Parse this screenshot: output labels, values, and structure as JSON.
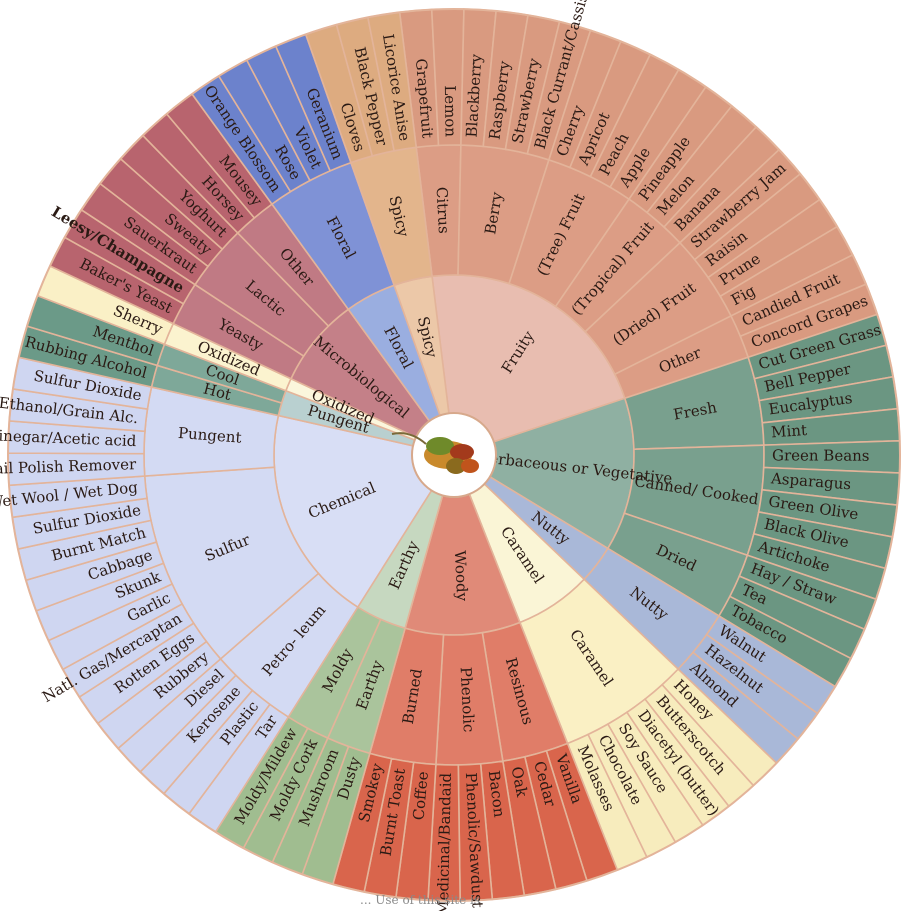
{
  "wheel": {
    "footer_text": "... Use of this site is",
    "sectors": [
      {
        "name": "Fruity",
        "color": "#e8bdb0",
        "mid_color": "#dc9d85",
        "outer_color": "#d99a80",
        "groups": [
          {
            "name": "Citrus",
            "items": [
              "Grapefruit",
              "Lemon"
            ]
          },
          {
            "name": "Berry",
            "items": [
              "Blackberry",
              "Raspberry",
              "Strawberry",
              "Black Currant/Cassis"
            ]
          },
          {
            "name": "(Tree) Fruit",
            "items": [
              "Cherry",
              "Apricot",
              "Peach",
              "Apple"
            ]
          },
          {
            "name": "(Tropical) Fruit",
            "items": [
              "Pineapple",
              "Melon",
              "Banana"
            ]
          },
          {
            "name": "(Dried) Fruit",
            "items": [
              "Strawberry Jam",
              "Raisin",
              "Prune",
              "Fig"
            ]
          },
          {
            "name": "Other",
            "items": [
              "Candied Fruit",
              "Concord Grapes"
            ]
          }
        ]
      },
      {
        "name": "Herbaceous or Vegetative",
        "color": "#8fb0a2",
        "mid_color": "#79a08e",
        "outer_color": "#6b9682",
        "groups": [
          {
            "name": "Fresh",
            "items": [
              "Cut Green Grass",
              "Bell Pepper",
              "Eucalyptus",
              "Mint"
            ]
          },
          {
            "name": "Canned/ Cooked",
            "items": [
              "Green Beans",
              "Asparagus",
              "Green Olive",
              "Black Olive",
              "Artichoke"
            ]
          },
          {
            "name": "Dried",
            "items": [
              "Hay / Straw",
              "Tea",
              "Tobacco"
            ]
          }
        ]
      },
      {
        "name": "Nutty",
        "color": "#a9b8d8",
        "mid_color": "#a9b8d8",
        "outer_color": "#a9b8d8",
        "groups": [
          {
            "name": "Nutty",
            "items": [
              "Walnut",
              "Hazelnut",
              "Almond"
            ]
          }
        ]
      },
      {
        "name": "Caramel",
        "color": "#faf5d6",
        "mid_color": "#faf0c4",
        "outer_color": "#f7ecbd",
        "groups": [
          {
            "name": "Caramel",
            "items": [
              "Honey",
              "Butterscotch",
              "Diacetyl (butter)",
              "Soy Sauce",
              "Chocolate",
              "Molasses"
            ]
          }
        ]
      },
      {
        "name": "Woody",
        "color": "#e08a78",
        "mid_color": "#e07d68",
        "outer_color": "#d9654c",
        "groups": [
          {
            "name": "Resinous",
            "items": [
              "Vanilla",
              "Cedar",
              "Oak"
            ]
          },
          {
            "name": "Phenolic",
            "items": [
              "Bacon",
              "Phenolic/Sawdust",
              "Medicinal/Bandaid"
            ]
          },
          {
            "name": "Burned",
            "items": [
              "Coffee",
              "Burnt Toast",
              "Smokey"
            ]
          }
        ]
      },
      {
        "name": "Earthy",
        "color": "#c6d8c0",
        "mid_color": "#aac49c",
        "outer_color": "#a0bd90",
        "groups": [
          {
            "name": "Earthy",
            "items": [
              "Dusty",
              "Mushroom"
            ]
          },
          {
            "name": "Moldy",
            "items": [
              "Moldy Cork",
              "Moldy/Mildew"
            ]
          }
        ]
      },
      {
        "name": "Chemical",
        "color": "#d8def5",
        "mid_color": "#d3daf3",
        "outer_color": "#cfd6f1",
        "groups": [
          {
            "name": "Petro- leum",
            "items": [
              "Tar",
              "Plastic",
              "Kerosene",
              "Diesel"
            ]
          },
          {
            "name": "Sulfur",
            "items": [
              "Rubbery",
              "Rotten Eggs",
              "Natl. Gas/Mercaptan",
              "Garlic",
              "Skunk",
              "Cabbage",
              "Burnt Match",
              "Sulfur Dioxide",
              "Wet Wool / Wet Dog"
            ]
          },
          {
            "name": "Pungent",
            "items": [
              "Nail Polish Remover",
              "Vinegar/Acetic acid",
              "Ethanol/Grain Alc.",
              "Sulfur Dioxide"
            ]
          }
        ]
      },
      {
        "name": "Pungent",
        "color": "#b9d0d0",
        "mid_color": "#7ea899",
        "outer_color": "#6b9a88",
        "groups": [
          {
            "name": "Hot",
            "items": [
              "Rubbing Alcohol"
            ]
          },
          {
            "name": "Cool",
            "items": [
              "Menthol"
            ]
          }
        ]
      },
      {
        "name": "Oxidized",
        "color": "#fbf6dc",
        "mid_color": "#fbf3cf",
        "outer_color": "#faf0c6",
        "groups": [
          {
            "name": "Oxidized",
            "items": [
              "Sherry"
            ]
          }
        ]
      },
      {
        "name": "Microbiological",
        "color": "#c48088",
        "mid_color": "#c07a84",
        "outer_color": "#b8646e",
        "groups": [
          {
            "name": "Yeasty",
            "items": [
              "Baker's Yeast",
              "Leesy/Champagne"
            ]
          },
          {
            "name": "Lactic",
            "items": [
              "Sauerkraut",
              "Sweaty",
              "Yoghurt"
            ]
          },
          {
            "name": "Other",
            "items": [
              "Horsey",
              "Mousey"
            ]
          }
        ]
      },
      {
        "name": "Floral",
        "color": "#9aaee0",
        "mid_color": "#7f92d6",
        "outer_color": "#6c82cc",
        "groups": [
          {
            "name": "Floral",
            "items": [
              "Orange Blossom",
              "Rose",
              "Violet",
              "Geranium"
            ]
          }
        ]
      },
      {
        "name": "Spicy",
        "color": "#ecc8a8",
        "mid_color": "#e3b58c",
        "outer_color": "#ddab80",
        "groups": [
          {
            "name": "Spicy",
            "items": [
              "Cloves",
              "Black Pepper",
              "Licorice Anise"
            ]
          }
        ]
      }
    ],
    "bold_items": [
      "Leesy/Champagne"
    ]
  }
}
